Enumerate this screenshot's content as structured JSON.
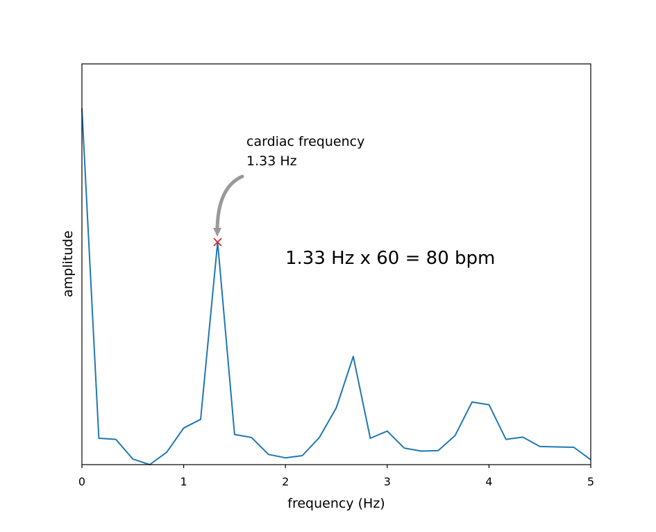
{
  "chart_data": {
    "type": "line",
    "xlabel": "frequency (Hz)",
    "ylabel": "amplitude",
    "xlim": [
      0,
      5
    ],
    "ylim": [
      0,
      1
    ],
    "xticks": [
      0,
      1,
      2,
      3,
      4,
      5
    ],
    "xtick_labels": [
      "0",
      "1",
      "2",
      "3",
      "4",
      "5"
    ],
    "yticks_visible": false,
    "grid": false,
    "series_color": "#1f77b4",
    "series": [
      {
        "x": [
          0,
          0.1667,
          0.3333,
          0.5,
          0.6667,
          0.8333,
          1.0,
          1.1667,
          1.3333,
          1.5,
          1.6667,
          1.8333,
          2.0,
          2.1667,
          2.3333,
          2.5,
          2.6667,
          2.8333,
          3.0,
          3.1667,
          3.3333,
          3.5,
          3.6667,
          3.8333,
          4.0,
          4.1667,
          4.3333,
          4.5,
          4.6667,
          4.8333,
          5.0
        ],
        "values": [
          0.945,
          0.07,
          0.067,
          0.015,
          0.0,
          0.033,
          0.097,
          0.12,
          0.59,
          0.08,
          0.072,
          0.027,
          0.018,
          0.024,
          0.072,
          0.151,
          0.287,
          0.07,
          0.089,
          0.044,
          0.036,
          0.037,
          0.077,
          0.166,
          0.159,
          0.067,
          0.073,
          0.048,
          0.047,
          0.046,
          0.013
        ]
      }
    ],
    "peak_marker": {
      "x": 1.3333,
      "y": 0.59,
      "color": "#d62728"
    },
    "annotations": {
      "peak_label_line1": "cardiac frequency",
      "peak_label_line2": "1.33 Hz",
      "formula": "1.33 Hz x 60 = 80 bpm"
    },
    "arrow_color": "#999999"
  }
}
